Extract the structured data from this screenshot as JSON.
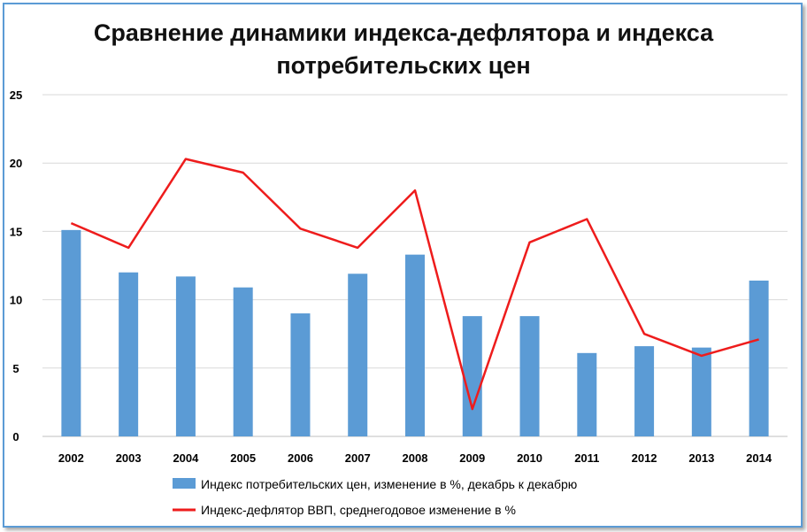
{
  "chart_data": {
    "type": "bar",
    "title_lines": [
      "Сравнение динамики индекса-дефлятора и индекса",
      "потребительских цен"
    ],
    "categories": [
      "2002",
      "2003",
      "2004",
      "2005",
      "2006",
      "2007",
      "2008",
      "2009",
      "2010",
      "2011",
      "2012",
      "2013",
      "2014"
    ],
    "y_ticks": [
      "0",
      "5",
      "10",
      "15",
      "20",
      "25"
    ],
    "ylim": [
      0,
      25
    ],
    "grid": true,
    "legend_position": "bottom",
    "series": [
      {
        "name": "Индекс потребительских цен, изменение в %, декабрь к декабрю",
        "kind": "bar",
        "color": "#5b9bd5",
        "values": [
          15.1,
          12.0,
          11.7,
          10.9,
          9.0,
          11.9,
          13.3,
          8.8,
          8.8,
          6.1,
          6.6,
          6.5,
          11.4
        ]
      },
      {
        "name": "Индекс-дефлятор ВВП, среднегодовое изменение в %",
        "kind": "line",
        "color": "#ee1c1c",
        "values": [
          15.6,
          13.8,
          20.3,
          19.3,
          15.2,
          13.8,
          18.0,
          2.0,
          14.2,
          15.9,
          7.5,
          5.9,
          7.1
        ]
      }
    ]
  }
}
